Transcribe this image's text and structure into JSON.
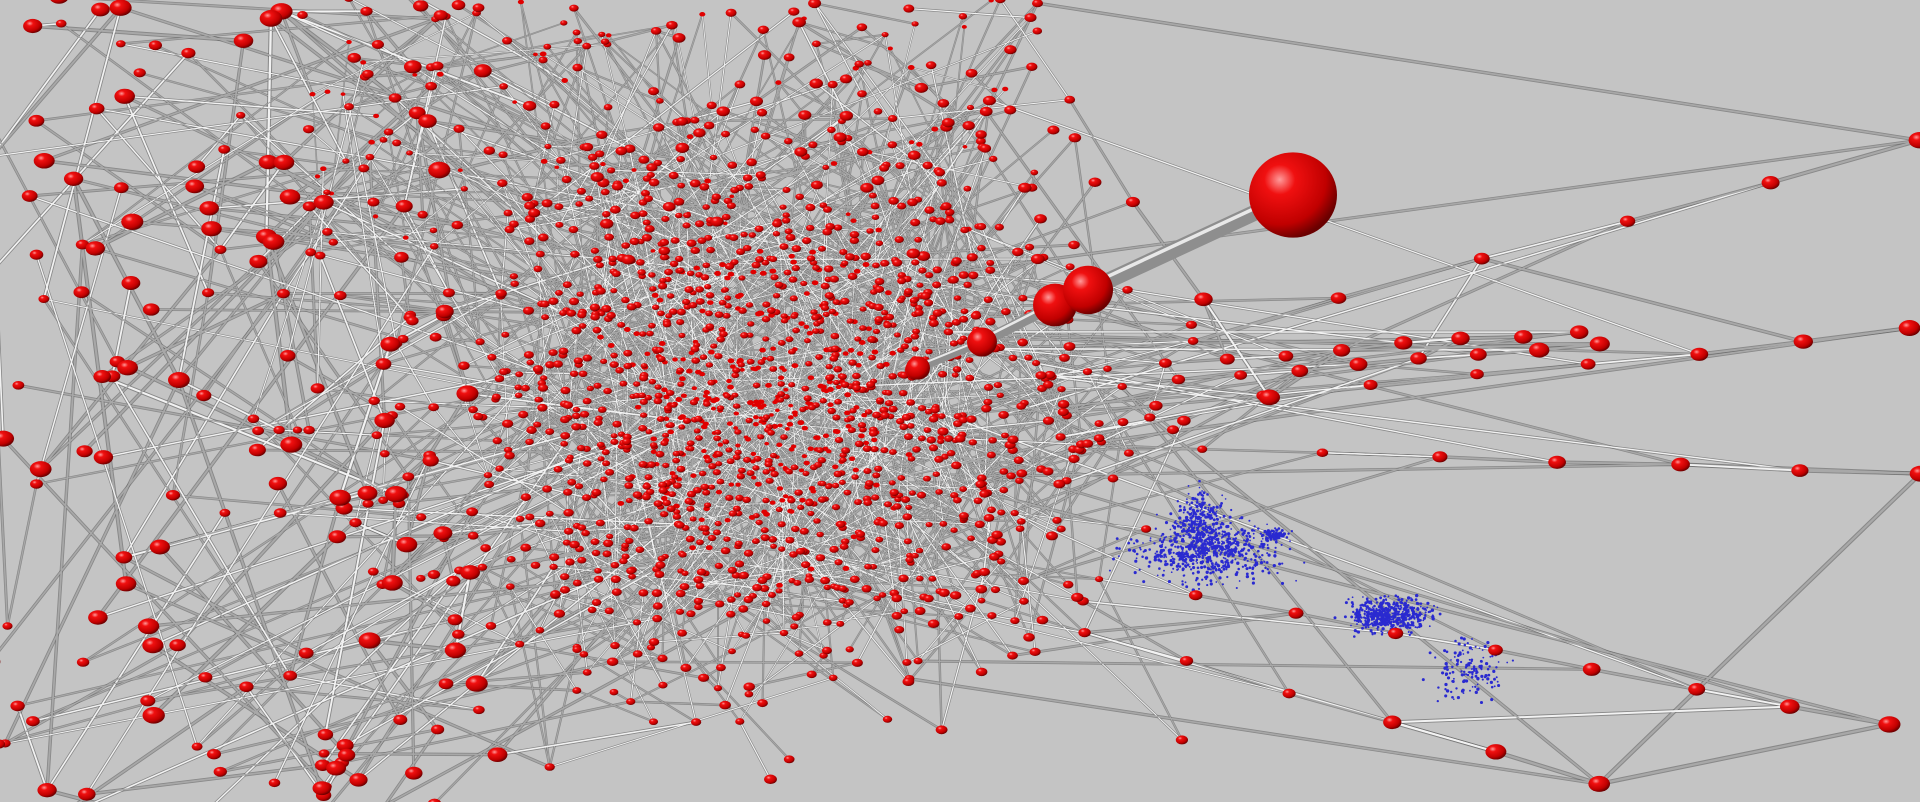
{
  "scene": {
    "background_color": "#c4c4c4",
    "edge_color": "#a8a8a8",
    "edge_highlight": "#f2f2f2",
    "edge_shadow": "#5a5a5a",
    "node_color": "#e00000",
    "node_highlight": "#ff8a8a",
    "node_shadow": "#7a0000",
    "cluster_node_color": "#2a2ad0"
  }
}
